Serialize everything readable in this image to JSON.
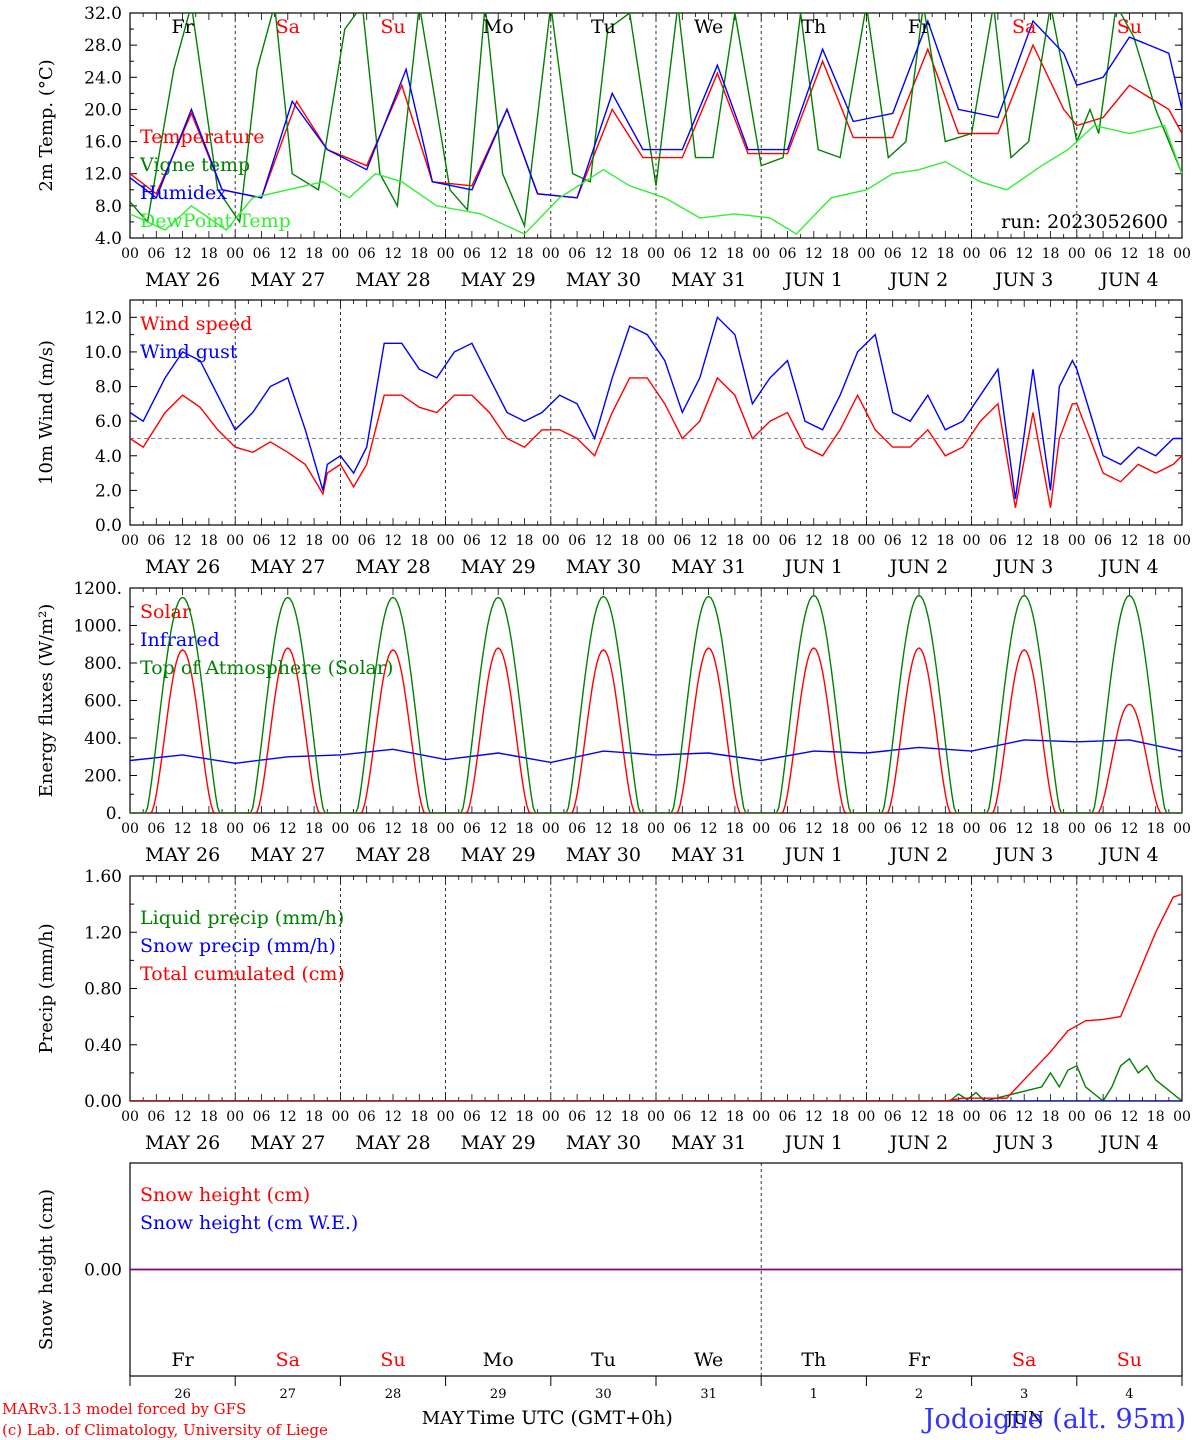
{
  "footer": {
    "model_line": "MARv3.13 model forced by GFS",
    "copyright_line": "(c) Lab. of Climatology, University of Liege",
    "xlabel": "Time UTC (GMT+0h)",
    "month_left": "MAY",
    "month_right": "JUN",
    "location": "Jodoigne (alt. 95m)"
  },
  "colors": {
    "temperature": "#ff0000",
    "vigne": "#008000",
    "humidex": "#0000ff",
    "dewpoint": "#33ee33",
    "weekend": "#ff0000",
    "weekday": "#000000",
    "snow_line": "#800080"
  },
  "hour_labels": [
    "00",
    "06",
    "12",
    "18"
  ],
  "days": [
    {
      "date": "MAY 26",
      "weekday": "Fr",
      "num": "26",
      "weekend": false
    },
    {
      "date": "MAY 27",
      "weekday": "Sa",
      "num": "27",
      "weekend": true
    },
    {
      "date": "MAY 28",
      "weekday": "Su",
      "num": "28",
      "weekend": true
    },
    {
      "date": "MAY 29",
      "weekday": "Mo",
      "num": "29",
      "weekend": false
    },
    {
      "date": "MAY 30",
      "weekday": "Tu",
      "num": "30",
      "weekend": false
    },
    {
      "date": "MAY 31",
      "weekday": "We",
      "num": "31",
      "weekend": false
    },
    {
      "date": "JUN  1",
      "weekday": "Th",
      "num": "1",
      "weekend": false
    },
    {
      "date": "JUN  2",
      "weekday": "Fr",
      "num": "2",
      "weekend": false
    },
    {
      "date": "JUN  3",
      "weekday": "Sa",
      "num": "3",
      "weekend": true
    },
    {
      "date": "JUN  4",
      "weekday": "Su",
      "num": "4",
      "weekend": true
    }
  ],
  "chart_data": [
    {
      "type": "line",
      "id": "temperature",
      "ylabel": "2m Temp. (°C)",
      "ylim": [
        4,
        32
      ],
      "yticks": [
        "4.0",
        "8.0",
        "12.0",
        "16.0",
        "20.0",
        "24.0",
        "28.0",
        "32.0"
      ],
      "run_label": "run: 2023052600",
      "x_units": "hours since MAY 26 00 UTC",
      "series": [
        {
          "name": "Temperature",
          "color": "#ff0000",
          "x": [
            0,
            6,
            14,
            21,
            30,
            38,
            45,
            54,
            62,
            69,
            78,
            86,
            93,
            102,
            110,
            117,
            126,
            134,
            141,
            150,
            158,
            165,
            174,
            182,
            189,
            198,
            206,
            213,
            216,
            222,
            228,
            237,
            240
          ],
          "y": [
            12,
            9.5,
            19.5,
            10,
            9,
            21,
            15,
            13,
            23,
            11,
            10.5,
            20,
            9.5,
            9,
            20,
            14,
            14,
            24.5,
            14.5,
            14.5,
            26,
            16.5,
            16.5,
            27.5,
            17,
            17,
            28,
            20,
            18,
            19,
            23,
            20,
            17
          ]
        },
        {
          "name": "Vigne temp",
          "color": "#008000",
          "x": [
            0,
            4,
            10,
            14,
            20,
            25,
            29,
            33,
            37,
            43,
            49,
            53,
            57,
            61,
            66,
            73,
            77,
            81,
            85,
            90,
            96,
            101,
            105,
            109,
            114,
            120,
            125,
            129,
            133,
            138,
            144,
            149,
            153,
            157,
            162,
            168,
            173,
            177,
            181,
            186,
            192,
            197,
            201,
            205,
            210,
            216,
            219,
            221,
            225,
            229,
            234,
            240
          ],
          "y": [
            8.5,
            6,
            25,
            33,
            10,
            6,
            25,
            33,
            12,
            10,
            30,
            33,
            12,
            8,
            33,
            10,
            7.5,
            33,
            12,
            5.5,
            33,
            12,
            11,
            30,
            32,
            10.5,
            33,
            14,
            14,
            32,
            13,
            14,
            32,
            15,
            14,
            33,
            14,
            16,
            33,
            16,
            17,
            33,
            14,
            16,
            33,
            16,
            20,
            17,
            33,
            29,
            20,
            12
          ]
        },
        {
          "name": "Humidex",
          "color": "#0000ff",
          "x": [
            0,
            6,
            14,
            21,
            30,
            37,
            45,
            54,
            63,
            69,
            78,
            86,
            93,
            102,
            110,
            117,
            126,
            134,
            141,
            150,
            158,
            165,
            174,
            182,
            189,
            198,
            206,
            213,
            216,
            222,
            228,
            237,
            240
          ],
          "y": [
            11.5,
            9,
            20,
            10,
            9,
            21,
            15,
            12.5,
            25,
            11,
            10,
            20,
            9.5,
            9,
            22,
            15,
            15,
            25.5,
            15,
            15,
            27.5,
            18.5,
            19.5,
            31,
            20,
            19,
            31,
            27,
            23,
            24,
            29,
            27,
            20
          ]
        },
        {
          "name": "DewPoint Temp",
          "color": "#33ee33",
          "x": [
            0,
            8,
            14,
            22,
            28,
            36,
            44,
            50,
            56,
            62,
            70,
            80,
            90,
            98,
            108,
            114,
            122,
            130,
            138,
            146,
            152,
            160,
            168,
            174,
            180,
            186,
            194,
            200,
            208,
            214,
            220,
            228,
            236,
            240
          ],
          "y": [
            7,
            5,
            8,
            5,
            9,
            10,
            11,
            9,
            12,
            11,
            8,
            7,
            4.5,
            9,
            12.5,
            10.5,
            9,
            6.5,
            7,
            6.5,
            4.5,
            9,
            10,
            12,
            12.5,
            13.5,
            11,
            10,
            13,
            15,
            18,
            17,
            18,
            12
          ]
        }
      ]
    },
    {
      "type": "line",
      "id": "wind",
      "ylabel": "10m Wind (m/s)",
      "ylim": [
        0,
        13
      ],
      "yticks": [
        "0.0",
        "2.0",
        "4.0",
        "6.0",
        "8.0",
        "10.0",
        "12.0"
      ],
      "reference_line": 5,
      "series": [
        {
          "name": "Wind speed",
          "color": "#ff0000",
          "x": [
            0,
            3,
            8,
            12,
            16,
            20,
            24,
            28,
            32,
            36,
            40,
            44,
            45,
            48,
            51,
            54,
            58,
            62,
            66,
            70,
            74,
            78,
            82,
            86,
            90,
            94,
            98,
            102,
            106,
            110,
            114,
            118,
            122,
            126,
            130,
            134,
            138,
            142,
            146,
            150,
            154,
            158,
            162,
            166,
            170,
            174,
            178,
            182,
            186,
            190,
            194,
            198,
            202,
            206,
            210,
            212,
            215,
            216,
            219,
            222,
            226,
            230,
            234,
            238,
            240
          ],
          "y": [
            5,
            4.5,
            6.5,
            7.5,
            6.8,
            5.5,
            4.5,
            4.2,
            4.8,
            4.2,
            3.5,
            1.8,
            3,
            3.5,
            2.2,
            3.5,
            7.5,
            7.5,
            6.8,
            6.5,
            7.5,
            7.5,
            6.5,
            5,
            4.5,
            5.5,
            5.5,
            5,
            4,
            6.5,
            8.5,
            8.5,
            7,
            5,
            6,
            8.5,
            7.5,
            5,
            6,
            6.5,
            4.5,
            4,
            5.5,
            7.5,
            5.5,
            4.5,
            4.5,
            5.5,
            4,
            4.5,
            6,
            7,
            1,
            6.5,
            1,
            5,
            7,
            7,
            5,
            3,
            2.5,
            3.5,
            3,
            3.5,
            4
          ]
        },
        {
          "name": "Wind gust",
          "color": "#0000ff",
          "x": [
            0,
            3,
            8,
            12,
            16,
            20,
            24,
            28,
            32,
            36,
            40,
            44,
            45,
            48,
            51,
            54,
            58,
            62,
            66,
            70,
            74,
            78,
            82,
            86,
            90,
            94,
            98,
            102,
            106,
            110,
            114,
            118,
            122,
            126,
            130,
            134,
            138,
            142,
            146,
            150,
            154,
            158,
            162,
            166,
            170,
            174,
            178,
            182,
            186,
            190,
            194,
            198,
            202,
            206,
            210,
            212,
            215,
            216,
            219,
            222,
            226,
            230,
            234,
            238,
            240
          ],
          "y": [
            6.5,
            6,
            8.5,
            10,
            9.5,
            7.5,
            5.5,
            6.5,
            8,
            8.5,
            5.5,
            2,
            3.5,
            4,
            3,
            4.5,
            10.5,
            10.5,
            9,
            8.5,
            10,
            10.5,
            8.5,
            6.5,
            6,
            6.5,
            7.5,
            7,
            5,
            8.5,
            11.5,
            11,
            9.5,
            6.5,
            8.5,
            12,
            11,
            7,
            8.5,
            9.5,
            6,
            5.5,
            7.5,
            10,
            11,
            6.5,
            6,
            7.5,
            5.5,
            6,
            7.5,
            9,
            1.5,
            9,
            2,
            8,
            9.5,
            9,
            6.5,
            4,
            3.5,
            4.5,
            4,
            5,
            5
          ]
        }
      ]
    },
    {
      "type": "line",
      "id": "radiation",
      "ylabel": "Energy fluxes (W/m²)",
      "ylim": [
        0,
        1200
      ],
      "yticks": [
        "0.",
        "200.",
        "400.",
        "600.",
        "800.",
        "1000.",
        "1200."
      ],
      "series": [
        {
          "name": "Solar",
          "color": "#ff0000",
          "daily_peak": [
            870,
            880,
            870,
            880,
            870,
            880,
            880,
            880,
            870,
            580
          ]
        },
        {
          "name": "Infrared",
          "color": "#0000ff",
          "x": [
            0,
            12,
            24,
            36,
            48,
            60,
            72,
            84,
            96,
            108,
            120,
            132,
            144,
            156,
            168,
            180,
            192,
            204,
            216,
            228,
            240
          ],
          "y": [
            280,
            310,
            265,
            300,
            310,
            340,
            285,
            320,
            270,
            330,
            310,
            320,
            280,
            330,
            320,
            350,
            330,
            390,
            380,
            390,
            330
          ]
        },
        {
          "name": "Top of Atmosphere (Solar)",
          "color": "#008000",
          "daily_peak": [
            1150,
            1150,
            1150,
            1150,
            1155,
            1155,
            1160,
            1160,
            1160,
            1160
          ]
        }
      ]
    },
    {
      "type": "line",
      "id": "precip",
      "ylabel": "Precip (mm/h)",
      "ylim": [
        0,
        1.6
      ],
      "yticks": [
        "0.00",
        "0.40",
        "0.80",
        "1.20",
        "1.60"
      ],
      "series": [
        {
          "name": "Liquid precip (mm/h)",
          "color": "#008000",
          "x": [
            0,
            187,
            189,
            191,
            193,
            195,
            208,
            210,
            212,
            214,
            216,
            218,
            220,
            222,
            224,
            226,
            228,
            230,
            232,
            234,
            236,
            238,
            240
          ],
          "y": [
            0,
            0,
            0.05,
            0.01,
            0.06,
            0,
            0.1,
            0.2,
            0.1,
            0.22,
            0.25,
            0.1,
            0.05,
            0,
            0.1,
            0.25,
            0.3,
            0.2,
            0.25,
            0.15,
            0.1,
            0.05,
            0
          ]
        },
        {
          "name": "Snow precip (mm/h)",
          "color": "#0000ff",
          "x": [
            0,
            240
          ],
          "y": [
            0,
            0
          ]
        },
        {
          "name": "Total cumulated (cm)",
          "color": "#ff0000",
          "x": [
            0,
            186,
            190,
            200,
            210,
            214,
            218,
            222,
            226,
            230,
            234,
            238,
            240
          ],
          "y": [
            0,
            0,
            0.02,
            0.02,
            0.35,
            0.5,
            0.57,
            0.58,
            0.6,
            0.9,
            1.2,
            1.45,
            1.47
          ]
        }
      ]
    },
    {
      "type": "line",
      "id": "snow",
      "ylabel": "Snow height (cm)",
      "yticks": [
        "0.00"
      ],
      "series": [
        {
          "name": "Snow height (cm)",
          "color": "#ff0000",
          "x": [
            0,
            240
          ],
          "y": [
            0,
            0
          ]
        },
        {
          "name": "Snow height (cm W.E.)",
          "color": "#0000ff",
          "x": [
            0,
            240
          ],
          "y": [
            0,
            0
          ]
        }
      ]
    }
  ]
}
